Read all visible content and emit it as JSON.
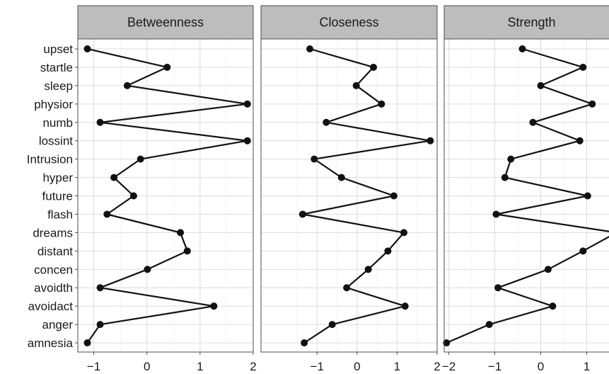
{
  "chart_data": {
    "type": "line",
    "facet_strip_color": "#bdbdbd",
    "line_color": "#111111",
    "grid": true,
    "categories": [
      "upset",
      "startle",
      "sleep",
      "physior",
      "numb",
      "lossint",
      "Intrusion",
      "hyper",
      "future",
      "flash",
      "dreams",
      "distant",
      "concen",
      "avoidth",
      "avoidact",
      "anger",
      "amnesia"
    ],
    "panels": [
      {
        "title": "Betweenness",
        "xlim": [
          -1.3,
          2.0
        ],
        "xticks": [
          -1,
          0,
          1,
          2
        ],
        "xtick_labels": [
          "−1",
          "0",
          "1",
          "2"
        ],
        "values": [
          -1.12,
          0.38,
          -0.37,
          1.89,
          -0.88,
          1.89,
          -0.12,
          -0.62,
          -0.25,
          -0.75,
          0.63,
          0.76,
          0.01,
          -0.88,
          1.26,
          -0.88,
          -1.12
        ]
      },
      {
        "title": "Closeness",
        "xlim": [
          -2.4,
          2.0
        ],
        "xticks": [
          -1,
          0,
          1,
          2
        ],
        "xtick_labels": [
          "−1",
          "0",
          "1",
          "2"
        ],
        "values": [
          -1.18,
          0.41,
          -0.02,
          0.61,
          -0.77,
          1.83,
          -1.07,
          -0.39,
          0.92,
          -1.36,
          1.17,
          0.77,
          0.28,
          -0.26,
          1.2,
          -0.62,
          -1.32
        ]
      },
      {
        "title": "Strength",
        "xlim": [
          -2.1,
          1.7
        ],
        "xticks": [
          -2,
          -1,
          0,
          1
        ],
        "xtick_labels": [
          "−2",
          "−1",
          "0",
          "1"
        ],
        "values": [
          -0.4,
          0.92,
          0.0,
          1.12,
          -0.17,
          0.85,
          -0.65,
          -0.78,
          1.02,
          -0.97,
          1.65,
          0.92,
          0.16,
          -0.93,
          0.26,
          -1.12,
          -2.05
        ]
      }
    ]
  }
}
